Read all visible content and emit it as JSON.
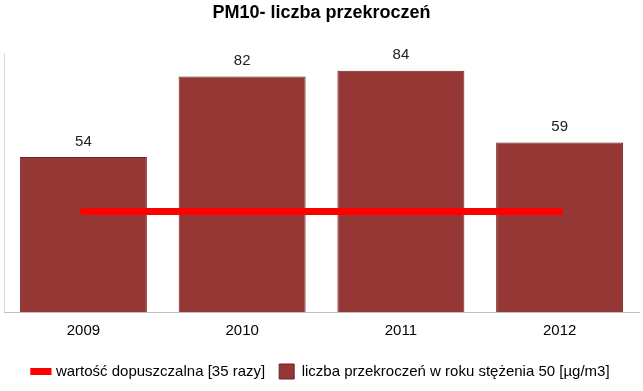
{
  "chart_data": {
    "type": "bar",
    "title": "PM10- liczba przekroczeń",
    "categories": [
      "2009",
      "2010",
      "2011",
      "2012"
    ],
    "series": [
      {
        "name": "liczba przekroczeń w roku stężenia 50 [µg/m3]",
        "type": "bar",
        "color": "#953735",
        "values": [
          54,
          82,
          84,
          59
        ],
        "data_labels": true
      },
      {
        "name": "wartość dopuszczalna [35 razy]",
        "type": "line",
        "color": "#ff0000",
        "values": [
          35,
          35,
          35,
          35
        ]
      }
    ],
    "ylim": [
      0,
      90
    ],
    "grid": false,
    "legend": "bottom",
    "tick_labels": "x"
  }
}
